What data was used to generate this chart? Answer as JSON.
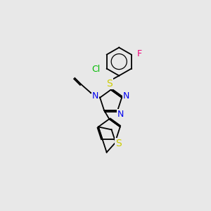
{
  "background_color": "#e8e8e8",
  "bond_color": "#000000",
  "atom_colors": {
    "S_thioether": "#cccc00",
    "S_benzothio": "#cccc00",
    "N": "#0000ee",
    "Cl": "#00bb00",
    "F": "#ee0077"
  },
  "lw": 1.3
}
